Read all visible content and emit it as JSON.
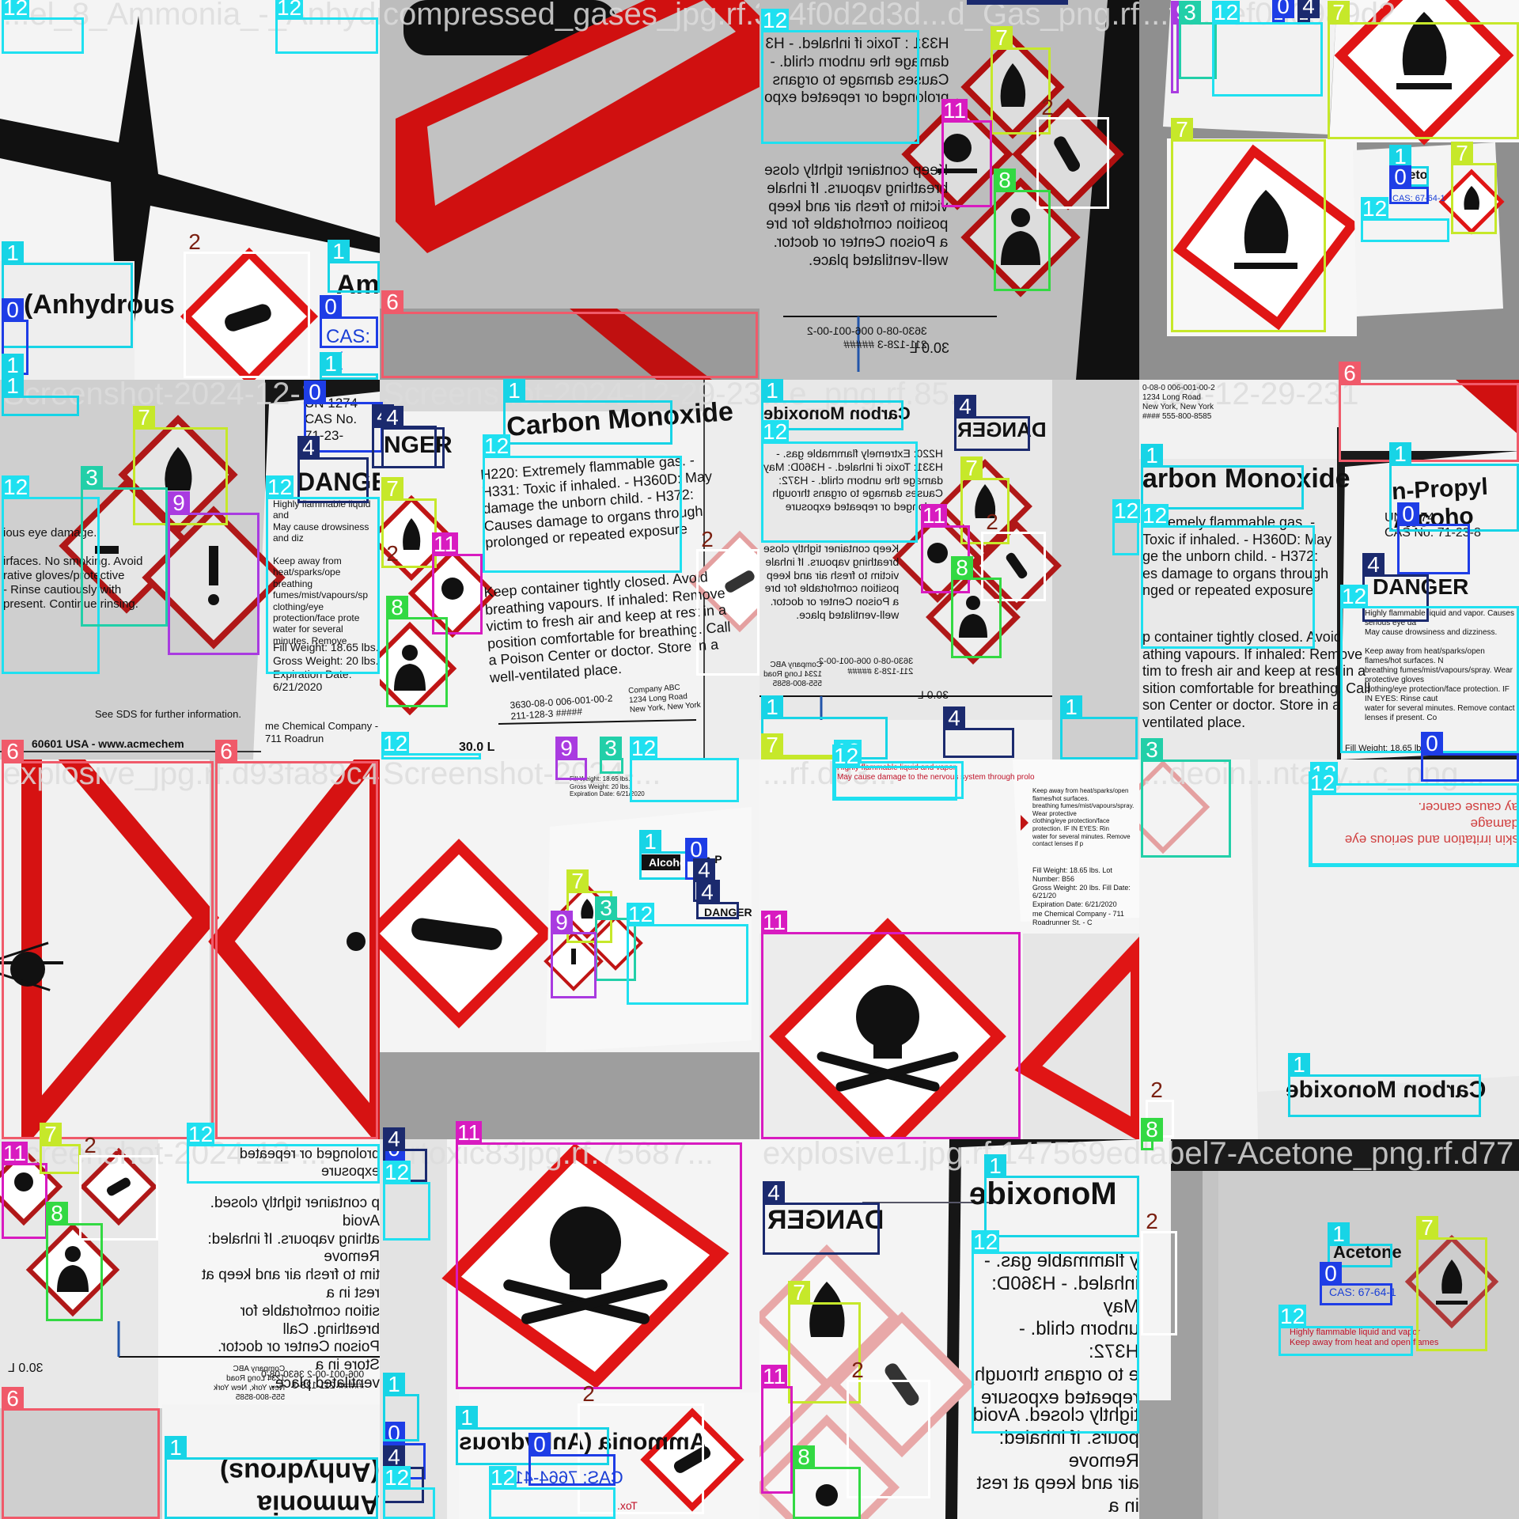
{
  "classes": {
    "0": {
      "color": "#1e3de6",
      "tag_text": "#ffffff"
    },
    "1": {
      "color": "#17d4e6",
      "tag_text": "#ffffff"
    },
    "2": {
      "color": "#ffffff",
      "tag_text": "#7a1f10"
    },
    "3": {
      "color": "#22cfa8",
      "tag_text": "#ffffff"
    },
    "4": {
      "color": "#1b2a6e",
      "tag_text": "#ffffff"
    },
    "6": {
      "color": "#f05a6a",
      "tag_text": "#ffffff"
    },
    "7": {
      "color": "#c6e82a",
      "tag_text": "#ffffff"
    },
    "8": {
      "color": "#33d943",
      "tag_text": "#ffffff"
    },
    "9": {
      "color": "#a93be0",
      "tag_text": "#ffffff"
    },
    "11": {
      "color": "#d81bc0",
      "tag_text": "#ffffff"
    },
    "12": {
      "color": "#1fe0f0",
      "tag_text": "#ffffff"
    }
  },
  "tiles": [
    {
      "id": "t00",
      "filename": "...el_8_Ammonia_-_Anhydrous_compressed_gases_jpg.rf.3d...",
      "labels": [
        {
          "text": "(Anhydrous",
          "bold": true
        },
        {
          "text": "Amr",
          "bold": true
        },
        {
          "text": "CAS: 7(",
          "color": "blue"
        }
      ]
    },
    {
      "id": "t01",
      "filename": "compressed_gases_jpg.rf.3d...",
      "labels": []
    },
    {
      "id": "t02",
      "filename": "...4f0d2d3d...d_Gas_png.rf...",
      "labels": [
        {
          "text": "H331 : Toxic if inhaled. - H3\ndamage the unborn child. -\nCauses damage to organs\nprolonged or repeated expo",
          "mirrored": true
        },
        {
          "text": "Keep container tightly close\nbreathing vapours. If inhale\nvictim to fresh air and keep\nposition comfortable for bre\na Poison Center or doctor.\nwell-ventilated place.",
          "mirrored": true
        },
        {
          "text": "3630-08-0   006-001-00-2\n211-128-3   #####",
          "mirrored": true
        },
        {
          "text": "30.0 L",
          "mirrored": true
        }
      ]
    },
    {
      "id": "t03",
      "filename": "...fla...ef0d0989d2",
      "labels": [
        {
          "text": "Aceto"
        },
        {
          "text": "CAS: 67-64-1",
          "color": "blue"
        }
      ]
    },
    {
      "id": "t10",
      "filename": "Screenshot-2024-12-1...",
      "labels": [
        {
          "text": "ious eye damage.\n\nirfaces. No smoking. Avoid\nrative gloves/protective\n- Rinse cautiously with\npresent. Continue rinsing."
        },
        {
          "text": "UN 1274\nCAS No. 71-23-",
          "bold": false
        },
        {
          "text": "DANGER",
          "bold": true
        },
        {
          "text": "Highly flammable liquid and\nMay cause drowsiness and diz\n\nKeep away from heat/sparks/ope\nbreathing fumes/mist/vapours/sp\nclothing/eye protection/face prote\nwater for several minutes. Remove"
        },
        {
          "text": "Fill Weight: 18.65 lbs.\nGross Weight: 20 lbs.\nExpiration Date: 6/21/2020"
        },
        {
          "text": "See SDS for further information."
        },
        {
          "text": "me Chemical Company - 711 Roadrun"
        },
        {
          "text": "60601 USA - www.acmechem"
        }
      ]
    },
    {
      "id": "t11",
      "filename": "Screenshot-2024-12-29-23...",
      "labels": [
        {
          "text": "Carbon Monoxide",
          "bold": true
        },
        {
          "text": "NGER",
          "bold": true
        },
        {
          "text": "H220: Extremely flammable gas. -\nH331: Toxic if inhaled. - H360D: May\ndamage the unborn child. - H372:\nCauses damage to organs through\nprolonged or repeated exposure"
        },
        {
          "text": "Keep container tightly closed. Avoid\nbreathing vapours. If inhaled: Remove\nvictim to fresh air and keep at rest in a\nposition comfortable for breathing. Call\na Poison Center or doctor. Store in a\nwell-ventilated place."
        },
        {
          "text": "3630-08-0   006-001-00-2\n211-128-3   #####"
        },
        {
          "text": "Company ABC\n1234 Long Road\nNew York, New York"
        },
        {
          "text": "30.0 L",
          "bold": true
        }
      ]
    },
    {
      "id": "t12",
      "filename": "...e_png.rf.85...",
      "labels": [
        {
          "text": "Carbon Monoxide",
          "bold": true,
          "mirrored": true
        },
        {
          "text": "DANGER",
          "bold": true,
          "mirrored": true
        },
        {
          "text": "H220: Extremely flammable gas. -\nH331: Toxic if inhaled. - H360D: May\ndamage the unborn child. - H372:\nCauses damage to organs through\nprolonged or repeated exposure",
          "mirrored": true
        },
        {
          "text": "Keep container tightly close\nbreathing vapours. If inhale\nvictim to fresh air and keep\nposition comfortable for bre\na Poison Center or doctor.\nwell-ventilated place.",
          "mirrored": true
        },
        {
          "text": "3630-08-0   006-001-00-2\n211-128-3   #####",
          "mirrored": true
        },
        {
          "text": "Company ABC\n1234 Long Road\n555-800-8585",
          "mirrored": true
        },
        {
          "text": "30.0 L",
          "mirrored": true
        }
      ]
    },
    {
      "id": "t13",
      "filename": "...24-12-29-231",
      "labels": [
        {
          "text": "0-08-0   006-001-00-2\n   1234 Long Road\n   New York, New York\n####   555-800-8585"
        },
        {
          "text": "arbon Monoxide",
          "bold": true
        },
        {
          "text": "Extremely flammable gas. -\nToxic if inhaled. - H360D: May\nge the unborn child. - H372:\nes damage to organs through\nnged or repeated exposure"
        },
        {
          "text": "p container tightly closed. Avoid\nathing vapours. If inhaled: Remove\ntim to fresh air and keep at rest in a\nsition comfortable for breathing. Call\nson Center or doctor. Store in a\nventilated place."
        },
        {
          "text": "n-Propyl Alcoho",
          "bold": true
        },
        {
          "text": "UN 1274\nCAS No. 71-23-8"
        },
        {
          "text": "DANGER",
          "bold": true
        },
        {
          "text": "Highly flammable liquid and vapor. Causes serious eye da\nMay cause drowsiness and dizziness.\n\nKeep away from heat/sparks/open flames/hot surfaces. N\nbreathing fumes/mist/vapours/spray. Wear protective gloves\nclothing/eye protection/face protection. IF IN EYES: Rinse caut\nwater for several minutes. Remove contact lenses if present. Co"
        },
        {
          "text": "Fill Weight: 18.65 lbs."
        }
      ]
    },
    {
      "id": "t20",
      "filename": "explosive_jpg.rf.d93fa89c43...",
      "labels": []
    },
    {
      "id": "t21",
      "filename": "Screenshot-2024-...",
      "labels": [
        {
          "text": "n-P",
          "bold": true
        },
        {
          "text": "Alcohol",
          "bold": true
        },
        {
          "text": "DANGER",
          "bold": true
        },
        {
          "text": "Fill Weight: 18.65 lbs.\nGross Weight: 20 lbs.\nExpiration Date: 6/21/2020"
        }
      ]
    },
    {
      "id": "t22",
      "filename": "...rf.d93...",
      "labels": [
        {
          "text": "Highly flammable liquid and vapor\nMay cause damage to the nervous system through prolo"
        },
        {
          "text": "Keep away from heat/sparks/open flames/hot surfaces.\nbreathing fumes/mist/vapours/spray. Wear protective\nclothing/eye protection/face protection. IF IN EYES: Rin\nwater for several minutes. Remove contact lenses if p"
        },
        {
          "text": "Fill Weight: 18.65 lbs.     Lot Number: B56\nGross Weight: 20 lbs.       Fill Date: 6/21/20\nExpiration Date: 6/21/2020"
        },
        {
          "text": "me Chemical Company - 711 Roadrunner St. - C"
        }
      ]
    },
    {
      "id": "t23",
      "filename": "...deoin...ntacy...c_png...",
      "labels": [
        {
          "text": "skin irritation and serious eye damage\nay cause cancer.",
          "rotated": true
        },
        {
          "text": "Carbon Monoxide",
          "bold": true,
          "mirrored": true
        }
      ]
    },
    {
      "id": "t30",
      "filename": "Screenshot-2024-12-...",
      "labels": [
        {
          "text": "p container tightly closed. Avoid\nathing vapours. If inhaled: Remove\ntim to fresh air and keep at rest in a\nsition comfortable for breathing. Call\nPoison Center or doctor. Store in a\nventilated place.",
          "mirrored": true
        },
        {
          "text": "prolonged or repeated exposure",
          "mirrored": true
        },
        {
          "text": "Company ABC\n1234 Long Road\nNew York, New York\n555-800-8585",
          "mirrored": true
        },
        {
          "text": "006-001-00-2   3630-08-0\n#####   211-128-3",
          "mirrored": true
        },
        {
          "text": "30.0 L",
          "mirrored": true
        },
        {
          "text": "Ammonia (Anhydrous)",
          "bold": true,
          "rotated": true
        }
      ]
    },
    {
      "id": "t31",
      "filename": "...rtoxic83jpg.rf.75687...",
      "labels": [
        {
          "text": "Ammonia (Anhydrous",
          "bold": true,
          "mirrored": true
        },
        {
          "text": "CAS: 7664-41-7",
          "color": "blue",
          "mirrored": true
        },
        {
          "text": "Tox.",
          "color": "red",
          "mirrored": true
        }
      ]
    },
    {
      "id": "t32",
      "filename": "explosive1.jpg.rf.147569edaba...",
      "labels": [
        {
          "text": "DANGER",
          "bold": true,
          "mirrored": true
        },
        {
          "text": "Monoxide",
          "bold": true,
          "mirrored": true
        },
        {
          "text": "y flammable gas. -\ninhaled. - H360D: May\nunborn child. - H372:\ne to organs through\nrepeated exposure",
          "mirrored": true
        },
        {
          "text": "tightly closed. Avoid\npours. If inhaled: Remove\nair and keep at rest in a\nfortable for breathing. Call",
          "mirrored": true
        }
      ]
    },
    {
      "id": "t33",
      "filename": "label7-Acetone_png.rf.d77",
      "labels": [
        {
          "text": "Acetone",
          "bold": true
        },
        {
          "text": "CAS: 67-64-1",
          "color": "blue"
        },
        {
          "text": "Highly flammable liquid and vapor\nKeep away from heat and open flames",
          "color": "red"
        }
      ]
    }
  ],
  "boxes": [
    {
      "cls": "12",
      "label": "12"
    },
    {
      "cls": "12",
      "label": "12"
    },
    {
      "cls": "2",
      "label": "2"
    },
    {
      "cls": "1",
      "label": "1"
    },
    {
      "cls": "0",
      "label": "0"
    },
    {
      "cls": "1",
      "label": "1"
    },
    {
      "cls": "1",
      "label": "1"
    },
    {
      "cls": "0",
      "label": "0"
    },
    {
      "cls": "1",
      "label": "1"
    },
    {
      "cls": "2",
      "label": "2"
    },
    {
      "cls": "6",
      "label": "6"
    },
    {
      "cls": "12",
      "label": "12"
    },
    {
      "cls": "4",
      "label": "4"
    },
    {
      "cls": "7",
      "label": "7"
    },
    {
      "cls": "2",
      "label": "2"
    },
    {
      "cls": "11",
      "label": "11"
    },
    {
      "cls": "8",
      "label": "8"
    },
    {
      "cls": "9",
      "label": "9"
    },
    {
      "cls": "3",
      "label": "3"
    },
    {
      "cls": "12",
      "label": "12"
    },
    {
      "cls": "0",
      "label": "0"
    },
    {
      "cls": "4",
      "label": "4"
    },
    {
      "cls": "7",
      "label": "7"
    },
    {
      "cls": "7",
      "label": "7"
    },
    {
      "cls": "7",
      "label": "7"
    },
    {
      "cls": "1",
      "label": "1"
    },
    {
      "cls": "0",
      "label": "0"
    },
    {
      "cls": "12",
      "label": "12"
    },
    {
      "cls": "1",
      "label": "1"
    },
    {
      "cls": "12",
      "label": "12"
    },
    {
      "cls": "0",
      "label": "0"
    },
    {
      "cls": "4",
      "label": "4"
    },
    {
      "cls": "4",
      "label": "4"
    },
    {
      "cls": "12",
      "label": "12"
    },
    {
      "cls": "7",
      "label": "7"
    },
    {
      "cls": "3",
      "label": "3"
    },
    {
      "cls": "9",
      "label": "9"
    },
    {
      "cls": "1",
      "label": "1"
    },
    {
      "cls": "4",
      "label": "4"
    },
    {
      "cls": "12",
      "label": "12"
    },
    {
      "cls": "7",
      "label": "7"
    },
    {
      "cls": "2",
      "label": "2"
    },
    {
      "cls": "11",
      "label": "11"
    },
    {
      "cls": "8",
      "label": "8"
    },
    {
      "cls": "2",
      "label": "2"
    },
    {
      "cls": "12",
      "label": "12"
    },
    {
      "cls": "9",
      "label": "9"
    },
    {
      "cls": "3",
      "label": "3"
    },
    {
      "cls": "12",
      "label": "12"
    },
    {
      "cls": "1",
      "label": "1"
    },
    {
      "cls": "4",
      "label": "4"
    },
    {
      "cls": "12",
      "label": "12"
    },
    {
      "cls": "7",
      "label": "7"
    },
    {
      "cls": "2",
      "label": "2"
    },
    {
      "cls": "11",
      "label": "11"
    },
    {
      "cls": "8",
      "label": "8"
    },
    {
      "cls": "1",
      "label": "1"
    },
    {
      "cls": "4",
      "label": "4"
    },
    {
      "cls": "1",
      "label": "1"
    },
    {
      "cls": "7",
      "label": "7"
    },
    {
      "cls": "12",
      "label": "12"
    },
    {
      "cls": "12",
      "label": "12"
    },
    {
      "cls": "6",
      "label": "6"
    },
    {
      "cls": "1",
      "label": "1"
    },
    {
      "cls": "12",
      "label": "12"
    },
    {
      "cls": "1",
      "label": "1"
    },
    {
      "cls": "0",
      "label": "0"
    },
    {
      "cls": "4",
      "label": "4"
    },
    {
      "cls": "12",
      "label": "12"
    },
    {
      "cls": "3",
      "label": "3"
    },
    {
      "cls": "0",
      "label": "0"
    },
    {
      "cls": "12",
      "label": "12"
    },
    {
      "cls": "6",
      "label": "6"
    },
    {
      "cls": "6",
      "label": "6"
    },
    {
      "cls": "2",
      "label": "2"
    },
    {
      "cls": "1",
      "label": "1"
    },
    {
      "cls": "0",
      "label": "0"
    },
    {
      "cls": "4",
      "label": "4"
    },
    {
      "cls": "7",
      "label": "7"
    },
    {
      "cls": "3",
      "label": "3"
    },
    {
      "cls": "9",
      "label": "9"
    },
    {
      "cls": "12",
      "label": "12"
    },
    {
      "cls": "4",
      "label": "4"
    },
    {
      "cls": "12",
      "label": "12"
    },
    {
      "cls": "11",
      "label": "11"
    },
    {
      "cls": "2",
      "label": "2"
    },
    {
      "cls": "12",
      "label": "12"
    },
    {
      "cls": "1",
      "label": "1"
    },
    {
      "cls": "2",
      "label": "2"
    },
    {
      "cls": "8",
      "label": "8"
    },
    {
      "cls": "11",
      "label": "11"
    },
    {
      "cls": "7",
      "label": "7"
    },
    {
      "cls": "2",
      "label": "2"
    },
    {
      "cls": "8",
      "label": "8"
    },
    {
      "cls": "12",
      "label": "12"
    },
    {
      "cls": "0",
      "label": "0"
    },
    {
      "cls": "4",
      "label": "4"
    },
    {
      "cls": "12",
      "label": "12"
    },
    {
      "cls": "11",
      "label": "11"
    },
    {
      "cls": "2",
      "label": "2"
    },
    {
      "cls": "1",
      "label": "1"
    },
    {
      "cls": "0",
      "label": "0"
    },
    {
      "cls": "12",
      "label": "12"
    },
    {
      "cls": "0",
      "label": "0"
    },
    {
      "cls": "4",
      "label": "4"
    },
    {
      "cls": "12",
      "label": "12"
    },
    {
      "cls": "1",
      "label": "1"
    },
    {
      "cls": "6",
      "label": "6"
    },
    {
      "cls": "1",
      "label": "1"
    },
    {
      "cls": "4",
      "label": "4"
    },
    {
      "cls": "1",
      "label": "1"
    },
    {
      "cls": "12",
      "label": "12"
    },
    {
      "cls": "7",
      "label": "7"
    },
    {
      "cls": "2",
      "label": "2"
    },
    {
      "cls": "11",
      "label": "11"
    },
    {
      "cls": "8",
      "label": "8"
    },
    {
      "cls": "2",
      "label": "2"
    },
    {
      "cls": "1",
      "label": "1"
    },
    {
      "cls": "0",
      "label": "0"
    },
    {
      "cls": "12",
      "label": "12"
    },
    {
      "cls": "7",
      "label": "7"
    }
  ]
}
